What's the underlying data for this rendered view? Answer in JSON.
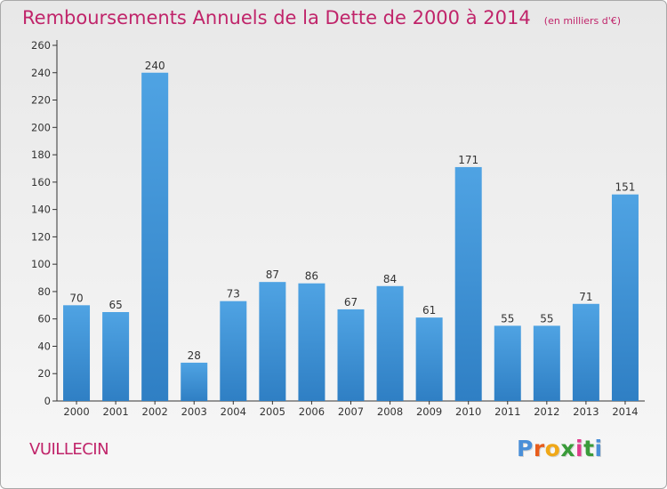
{
  "chart_data": {
    "type": "bar",
    "title": "Remboursements Annuels de la Dette de 2000 à 2014",
    "unit_note": "(en milliers d'€)",
    "categories": [
      "2000",
      "2001",
      "2002",
      "2003",
      "2004",
      "2005",
      "2006",
      "2007",
      "2008",
      "2009",
      "2010",
      "2011",
      "2012",
      "2013",
      "2014"
    ],
    "values": [
      70,
      65,
      240,
      28,
      73,
      87,
      86,
      67,
      84,
      61,
      171,
      55,
      55,
      71,
      151
    ],
    "data_labels": [
      "70",
      "65",
      "240",
      "28",
      "73",
      "87",
      "86",
      "67",
      "84",
      "61",
      "171",
      "55",
      "55",
      "71",
      "151"
    ],
    "ylim": [
      0,
      260
    ],
    "yticks": [
      0,
      20,
      40,
      60,
      80,
      100,
      120,
      140,
      160,
      180,
      200,
      220,
      240,
      260
    ],
    "grid": false,
    "colors": {
      "bar": "#4fa3e3",
      "bar_dark": "#2f7fc4",
      "title": "#c0246a",
      "axis": "#333333"
    }
  },
  "footer": {
    "commune": "VUILLECIN",
    "logo_letters": [
      "P",
      "r",
      "o",
      "x",
      "i",
      "t",
      "i"
    ],
    "logo_colors": [
      "#4a8fd8",
      "#e85d1c",
      "#f0a818",
      "#3a9b3a",
      "#e03c8c",
      "#3a9b3a",
      "#4a8fd8"
    ]
  }
}
